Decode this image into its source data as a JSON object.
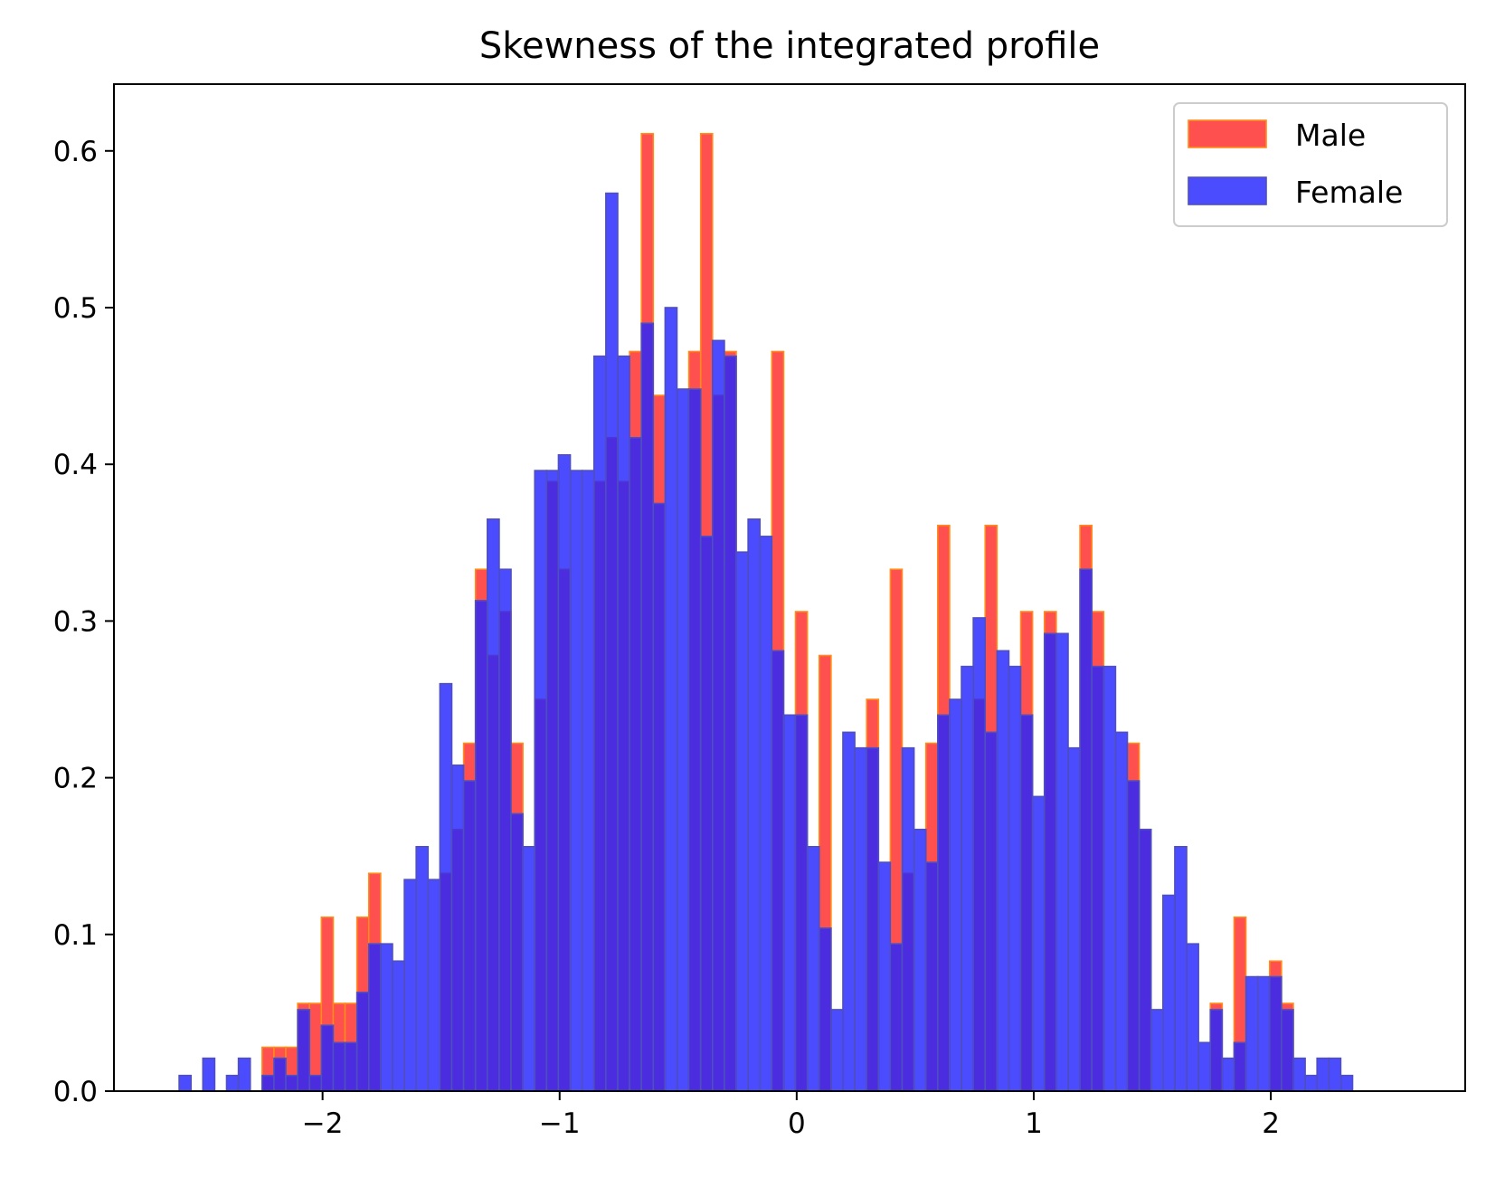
{
  "colors": {
    "male_fill": "#ff2a2a",
    "male_edge": "#ff8c1a",
    "female_fill": "#2424ff",
    "female_edge": "#4f4fbf"
  },
  "chart_data": {
    "type": "bar",
    "title": "Skewness of the integrated profile",
    "xlabel": "",
    "ylabel": "",
    "xlim": [
      -2.88,
      2.82
    ],
    "ylim": [
      0,
      0.6426
    ],
    "grid": false,
    "legend_placement": "top-right",
    "x_ticks": [
      -2,
      -1,
      0,
      1,
      2
    ],
    "x_tick_labels": [
      "−2",
      "−1",
      "0",
      "1",
      "2"
    ],
    "y_ticks": [
      0,
      0.1,
      0.2,
      0.3,
      0.4,
      0.5,
      0.6
    ],
    "y_tick_labels": [
      "0.0",
      "0.1",
      "0.2",
      "0.3",
      "0.4",
      "0.5",
      "0.6"
    ],
    "series": [
      {
        "name": "Male",
        "bin_start": -2.255,
        "bin_width": 0.05,
        "values": [
          0.028,
          0.028,
          0.028,
          0.056,
          0.056,
          0.111,
          0.056,
          0.056,
          0.111,
          0.139,
          0.0,
          0.0,
          0.0,
          0.0,
          0.0,
          0.139,
          0.167,
          0.222,
          0.333,
          0.278,
          0.306,
          0.222,
          0.0,
          0.25,
          0.389,
          0.333,
          0.0,
          0.0,
          0.389,
          0.417,
          0.389,
          0.472,
          0.611,
          0.444,
          0.0,
          0.0,
          0.472,
          0.611,
          0.444,
          0.472,
          0.0,
          0.0,
          0.0,
          0.472,
          0.0,
          0.306,
          0.0,
          0.278,
          0.0,
          0.0,
          0.0,
          0.25,
          0.0,
          0.333,
          0.139,
          0.0,
          0.222,
          0.361,
          0.0,
          0.0,
          0.25,
          0.361,
          0.0,
          0.0,
          0.306,
          0.0,
          0.306,
          0.0,
          0.0,
          0.361,
          0.306,
          0.0,
          0.0,
          0.222,
          0.167,
          0.0,
          0.0,
          0.0,
          0.0,
          0.0,
          0.056,
          0.0,
          0.111,
          0.0,
          0.0,
          0.083,
          0.056
        ]
      },
      {
        "name": "Female",
        "bin_start": -2.605,
        "bin_width": 0.05,
        "values": [
          0.01,
          0.0,
          0.021,
          0.0,
          0.01,
          0.021,
          0.0,
          0.01,
          0.021,
          0.01,
          0.052,
          0.01,
          0.042,
          0.031,
          0.031,
          0.063,
          0.094,
          0.094,
          0.083,
          0.135,
          0.156,
          0.135,
          0.26,
          0.208,
          0.198,
          0.313,
          0.365,
          0.333,
          0.177,
          0.156,
          0.396,
          0.396,
          0.406,
          0.396,
          0.396,
          0.469,
          0.573,
          0.469,
          0.417,
          0.49,
          0.375,
          0.5,
          0.448,
          0.448,
          0.354,
          0.479,
          0.469,
          0.344,
          0.365,
          0.354,
          0.281,
          0.24,
          0.24,
          0.156,
          0.104,
          0.052,
          0.229,
          0.219,
          0.219,
          0.146,
          0.094,
          0.219,
          0.167,
          0.146,
          0.24,
          0.25,
          0.271,
          0.302,
          0.229,
          0.281,
          0.271,
          0.24,
          0.188,
          0.292,
          0.292,
          0.219,
          0.333,
          0.271,
          0.271,
          0.229,
          0.198,
          0.167,
          0.052,
          0.125,
          0.156,
          0.094,
          0.031,
          0.052,
          0.021,
          0.031,
          0.073,
          0.073,
          0.073,
          0.052,
          0.021,
          0.01,
          0.021,
          0.021,
          0.01
        ]
      }
    ]
  }
}
